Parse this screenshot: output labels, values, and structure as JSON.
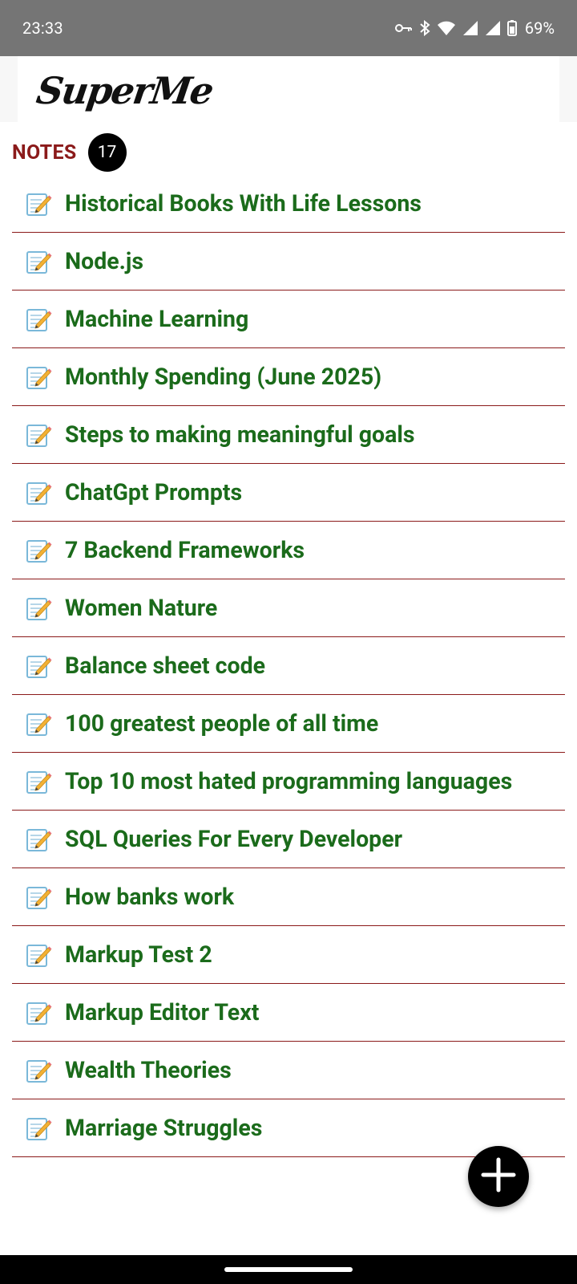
{
  "status_bar": {
    "time": "23:33",
    "battery_percent": "69%",
    "icons": [
      "vpn-key-icon",
      "bluetooth-icon",
      "wifi-icon",
      "signal-icon",
      "signal-icon",
      "battery-icon"
    ]
  },
  "app": {
    "logo_text": "SuperMe"
  },
  "notes": {
    "header_label": "NOTES",
    "count": "17",
    "items": [
      {
        "title": "Historical Books With Life Lessons",
        "icon": "memo-icon"
      },
      {
        "title": "Node.js",
        "icon": "memo-icon"
      },
      {
        "title": "Machine Learning",
        "icon": "memo-icon"
      },
      {
        "title": "Monthly Spending (June 2025)",
        "icon": "memo-icon"
      },
      {
        "title": "Steps to making meaningful goals",
        "icon": "memo-icon"
      },
      {
        "title": "ChatGpt Prompts",
        "icon": "memo-icon"
      },
      {
        "title": "7 Backend Frameworks",
        "icon": "memo-icon"
      },
      {
        "title": "Women Nature",
        "icon": "memo-icon"
      },
      {
        "title": "Balance sheet code",
        "icon": "memo-icon"
      },
      {
        "title": "100 greatest people of all time",
        "icon": "memo-icon"
      },
      {
        "title": "Top 10 most hated programming languages",
        "icon": "memo-icon"
      },
      {
        "title": "SQL Queries For Every Developer",
        "icon": "memo-icon"
      },
      {
        "title": "How banks work",
        "icon": "memo-icon"
      },
      {
        "title": "Markup Test 2",
        "icon": "memo-icon"
      },
      {
        "title": "Markup Editor Text",
        "icon": "memo-icon"
      },
      {
        "title": "Wealth Theories",
        "icon": "memo-icon"
      },
      {
        "title": "Marriage Struggles",
        "icon": "memo-icon"
      }
    ]
  },
  "fab": {
    "icon": "plus-icon"
  },
  "colors": {
    "status_bar_bg": "#757575",
    "notes_header": "#8b1a1a",
    "note_title": "#1b6b1b",
    "divider": "#8b1a1a",
    "fab_bg": "#000000"
  }
}
